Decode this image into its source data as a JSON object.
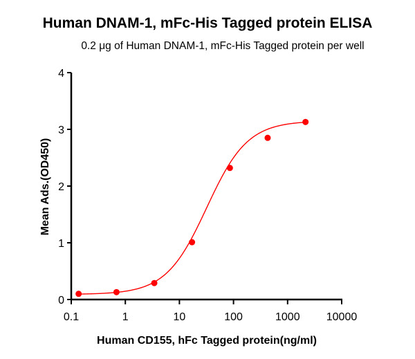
{
  "chart_data": {
    "type": "scatter",
    "title": "Human DNAM-1, mFc-His Tagged protein ELISA",
    "subtitle": "0.2 μg of Human DNAM-1, mFc-His Tagged protein per well",
    "xlabel": "Human CD155, hFc Tagged protein(ng/ml)",
    "ylabel": "Mean Ads.(OD450)",
    "xscale": "log",
    "xlim": [
      0.1,
      10000
    ],
    "ylim": [
      0,
      4
    ],
    "x_ticks": [
      "0.1",
      "1",
      "10",
      "100",
      "1000",
      "10000"
    ],
    "y_ticks": [
      "0",
      "1",
      "2",
      "3",
      "4"
    ],
    "grid": false,
    "series": [
      {
        "name": "Human CD155, hFc Tagged protein",
        "color": "#ff0000",
        "fit": "sigmoidal 4PL",
        "x": [
          0.137,
          0.686,
          3.43,
          17.1,
          85.7,
          428,
          2143
        ],
        "values": [
          0.1,
          0.13,
          0.29,
          1.01,
          2.32,
          2.85,
          3.13
        ]
      }
    ]
  }
}
